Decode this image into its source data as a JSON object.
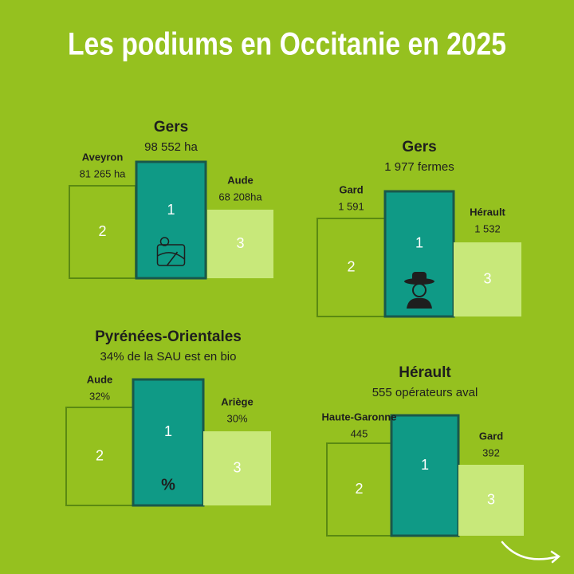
{
  "title": "Les podiums en Occitanie en 2025",
  "podiums": [
    {
      "first": {
        "name": "Gers",
        "value": "98 552 ha",
        "rank": "1"
      },
      "second": {
        "name": "Aveyron",
        "value": "81 265 ha",
        "rank": "2"
      },
      "third": {
        "name": "Aude",
        "value": "68 208ha",
        "rank": "3"
      }
    },
    {
      "first": {
        "name": "Gers",
        "value": "1 977 fermes",
        "rank": "1"
      },
      "second": {
        "name": "Gard",
        "value": "1 591",
        "rank": "2"
      },
      "third": {
        "name": "Hérault",
        "value": "1 532",
        "rank": "3"
      }
    },
    {
      "first": {
        "name": "Pyrénées-Orientales",
        "value": "34% de la SAU est en bio",
        "rank": "1",
        "icon_text": "%"
      },
      "second": {
        "name": "Aude",
        "value": "32%",
        "rank": "2"
      },
      "third": {
        "name": "Ariège",
        "value": "30%",
        "rank": "3"
      }
    },
    {
      "first": {
        "name": "Hérault",
        "value": "555 opérateurs aval",
        "rank": "1"
      },
      "second": {
        "name": "Haute-Garonne",
        "value": "445",
        "rank": "2"
      },
      "third": {
        "name": "Gard",
        "value": "392",
        "rank": "3"
      }
    }
  ]
}
